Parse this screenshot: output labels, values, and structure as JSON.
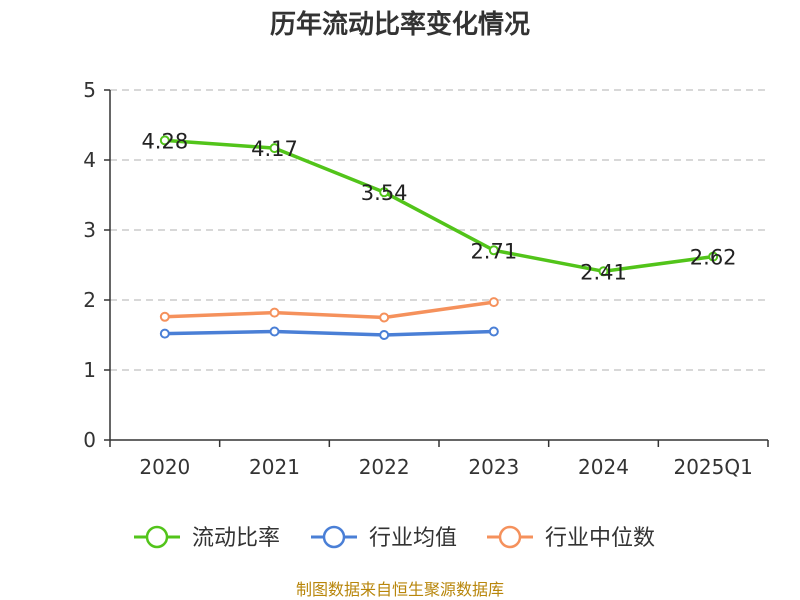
{
  "chart_data": {
    "type": "line",
    "title": "历年流动比率变化情况",
    "categories": [
      "2020",
      "2021",
      "2022",
      "2023",
      "2024",
      "2025Q1"
    ],
    "ylim": [
      0,
      5
    ],
    "yticks": [
      0,
      1,
      2,
      3,
      4,
      5
    ],
    "grid": true,
    "legend_position": "bottom",
    "series": [
      {
        "name": "流动比率",
        "color": "#52c41a",
        "values": [
          4.28,
          4.17,
          3.54,
          2.71,
          2.41,
          2.62
        ],
        "labels": [
          "4.28",
          "4.17",
          "3.54",
          "2.71",
          "2.41",
          "2.62"
        ]
      },
      {
        "name": "行业均值",
        "color": "#4a7fd6",
        "values": [
          1.52,
          1.55,
          1.5,
          1.55,
          null,
          null
        ]
      },
      {
        "name": "行业中位数",
        "color": "#f5915c",
        "values": [
          1.76,
          1.82,
          1.75,
          1.97,
          null,
          null
        ]
      }
    ],
    "source": "制图数据来自恒生聚源数据库"
  }
}
